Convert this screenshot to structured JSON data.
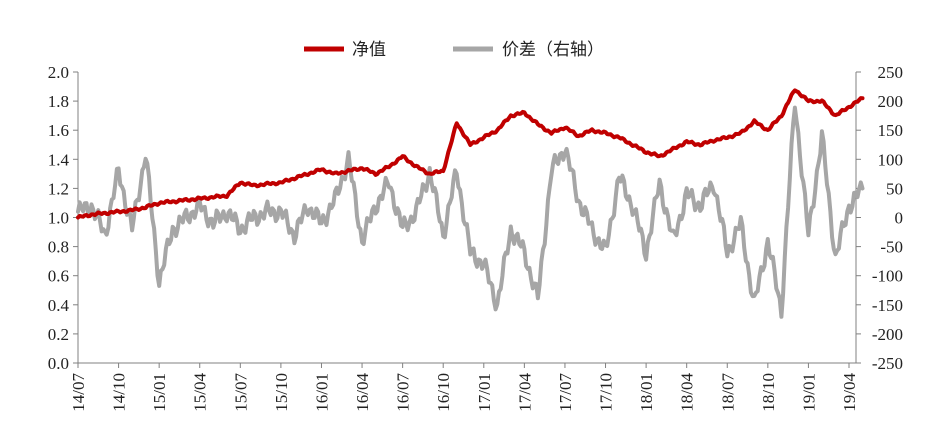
{
  "chart_data": {
    "type": "line",
    "title": "",
    "xlabel": "",
    "ylabel": "",
    "legend": {
      "placement": "top-center"
    },
    "grid": false,
    "x_ticks": [
      "14/07",
      "14/10",
      "15/01",
      "15/04",
      "15/07",
      "15/10",
      "16/01",
      "16/04",
      "16/07",
      "16/10",
      "17/01",
      "17/04",
      "17/07",
      "17/10",
      "18/01",
      "18/04",
      "18/07",
      "18/10",
      "19/01",
      "19/04"
    ],
    "y_left": {
      "ylim": [
        0,
        2.0
      ],
      "ticks": [
        "0.0",
        "0.2",
        "0.4",
        "0.6",
        "0.8",
        "1.0",
        "1.2",
        "1.4",
        "1.6",
        "1.8",
        "2.0"
      ]
    },
    "y_right": {
      "ylim": [
        -250,
        250
      ],
      "ticks": [
        "-250",
        "-200",
        "-150",
        "-100",
        "-50",
        "0",
        "50",
        "100",
        "150",
        "200",
        "250"
      ]
    },
    "series": [
      {
        "name": "净值",
        "axis": "left",
        "color": "#c00000",
        "x": [
          "14/07",
          "14/08",
          "14/09",
          "14/10",
          "14/11",
          "14/12",
          "15/01",
          "15/02",
          "15/03",
          "15/04",
          "15/05",
          "15/06",
          "15/07",
          "15/08",
          "15/09",
          "15/10",
          "15/11",
          "15/12",
          "16/01",
          "16/02",
          "16/03",
          "16/04",
          "16/05",
          "16/06",
          "16/07",
          "16/08",
          "16/09",
          "16/10",
          "16/11",
          "16/12",
          "17/01",
          "17/02",
          "17/03",
          "17/04",
          "17/05",
          "17/06",
          "17/07",
          "17/08",
          "17/09",
          "17/10",
          "17/11",
          "17/12",
          "18/01",
          "18/02",
          "18/03",
          "18/04",
          "18/05",
          "18/06",
          "18/07",
          "18/08",
          "18/09",
          "18/10",
          "18/11",
          "18/12",
          "19/01",
          "19/02",
          "19/03",
          "19/04",
          "19/05"
        ],
        "values": [
          1.0,
          1.02,
          1.03,
          1.04,
          1.05,
          1.07,
          1.1,
          1.11,
          1.12,
          1.13,
          1.14,
          1.15,
          1.24,
          1.22,
          1.23,
          1.24,
          1.27,
          1.3,
          1.33,
          1.3,
          1.32,
          1.34,
          1.3,
          1.35,
          1.42,
          1.35,
          1.3,
          1.32,
          1.65,
          1.5,
          1.55,
          1.6,
          1.7,
          1.72,
          1.64,
          1.58,
          1.62,
          1.56,
          1.6,
          1.58,
          1.55,
          1.5,
          1.45,
          1.42,
          1.47,
          1.52,
          1.5,
          1.53,
          1.55,
          1.58,
          1.66,
          1.6,
          1.7,
          1.88,
          1.8,
          1.8,
          1.7,
          1.76,
          1.82
        ]
      },
      {
        "name": "价差（右轴）",
        "axis": "right",
        "color": "#a6a6a6",
        "x": [
          "14/07",
          "14/08",
          "14/09",
          "14/10",
          "14/11",
          "14/12",
          "15/01",
          "15/02",
          "15/03",
          "15/04",
          "15/05",
          "15/06",
          "15/07",
          "15/08",
          "15/09",
          "15/10",
          "15/11",
          "15/12",
          "16/01",
          "16/02",
          "16/03",
          "16/04",
          "16/05",
          "16/06",
          "16/07",
          "16/08",
          "16/09",
          "16/10",
          "16/11",
          "16/12",
          "17/01",
          "17/02",
          "17/03",
          "17/04",
          "17/05",
          "17/06",
          "17/07",
          "17/08",
          "17/09",
          "17/10",
          "17/11",
          "17/12",
          "18/01",
          "18/02",
          "18/03",
          "18/04",
          "18/05",
          "18/06",
          "18/07",
          "18/08",
          "18/09",
          "18/10",
          "18/11",
          "18/12",
          "19/01",
          "19/02",
          "19/03",
          "19/04",
          "19/05"
        ],
        "values": [
          10,
          20,
          -30,
          80,
          -20,
          110,
          -110,
          -20,
          0,
          20,
          -10,
          10,
          -20,
          0,
          10,
          10,
          -30,
          20,
          -10,
          30,
          100,
          -40,
          20,
          60,
          -20,
          10,
          80,
          -30,
          80,
          -60,
          -80,
          -150,
          -20,
          -60,
          -140,
          80,
          120,
          30,
          -20,
          -60,
          70,
          20,
          -60,
          60,
          -40,
          40,
          20,
          60,
          -60,
          -10,
          -150,
          -40,
          -160,
          200,
          -30,
          140,
          -70,
          20,
          50
        ]
      }
    ]
  }
}
